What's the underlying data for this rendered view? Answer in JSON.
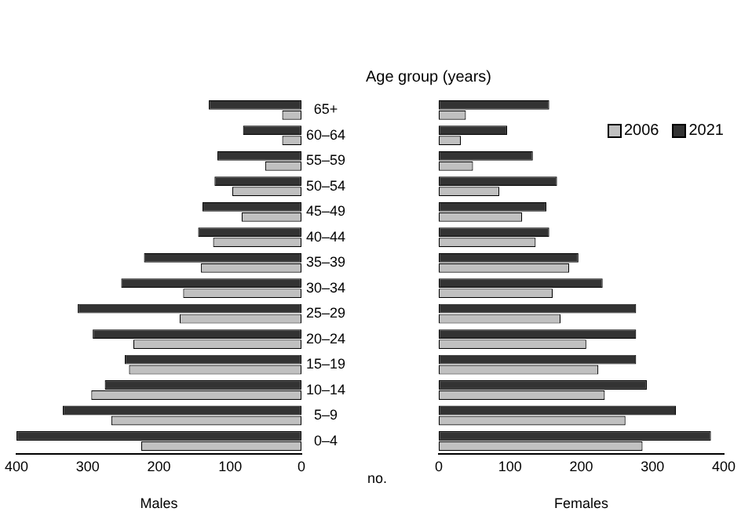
{
  "chart_data": [
    {
      "type": "bar",
      "orientation": "horizontal",
      "xlabel": "Males",
      "categories": [
        "65+",
        "60–64",
        "55–59",
        "50–54",
        "45–49",
        "40–44",
        "35–39",
        "30–34",
        "25–29",
        "20–24",
        "15–19",
        "10–14",
        "5–9",
        "0–4"
      ],
      "series": [
        {
          "color": "#333333",
          "values": [
            130,
            82,
            118,
            122,
            139,
            145,
            221,
            253,
            314,
            293,
            248,
            276,
            335,
            400
          ]
        },
        {
          "color": "#c0c0c0",
          "values": [
            27,
            27,
            51,
            97,
            84,
            124,
            141,
            166,
            171,
            236,
            242,
            295,
            267,
            225
          ]
        }
      ],
      "xlim": [
        400,
        0
      ],
      "xticks": [
        400,
        300,
        200,
        100,
        0
      ],
      "grid": false,
      "legend": false
    },
    {
      "type": "bar",
      "orientation": "horizontal",
      "title": "Age group (years)",
      "xlabel": "Females",
      "annotations": [
        "no."
      ],
      "tick_labels": "x",
      "categories": [
        null,
        null,
        null,
        null,
        null,
        null,
        null,
        null,
        null,
        null,
        null,
        null,
        null,
        null
      ],
      "series": [
        {
          "name": "2021",
          "color": "#333333",
          "values": [
            155,
            96,
            132,
            166,
            151,
            155,
            196,
            230,
            277,
            277,
            277,
            292,
            333,
            382
          ]
        },
        {
          "name": "2006",
          "color": "#c0c0c0",
          "values": [
            38,
            31,
            48,
            85,
            117,
            136,
            183,
            160,
            171,
            207,
            224,
            233,
            262,
            286
          ]
        }
      ],
      "xlim": [
        0,
        400
      ],
      "xticks": [
        0,
        100,
        200,
        300,
        400
      ],
      "grid": false,
      "legend": "top right"
    }
  ]
}
